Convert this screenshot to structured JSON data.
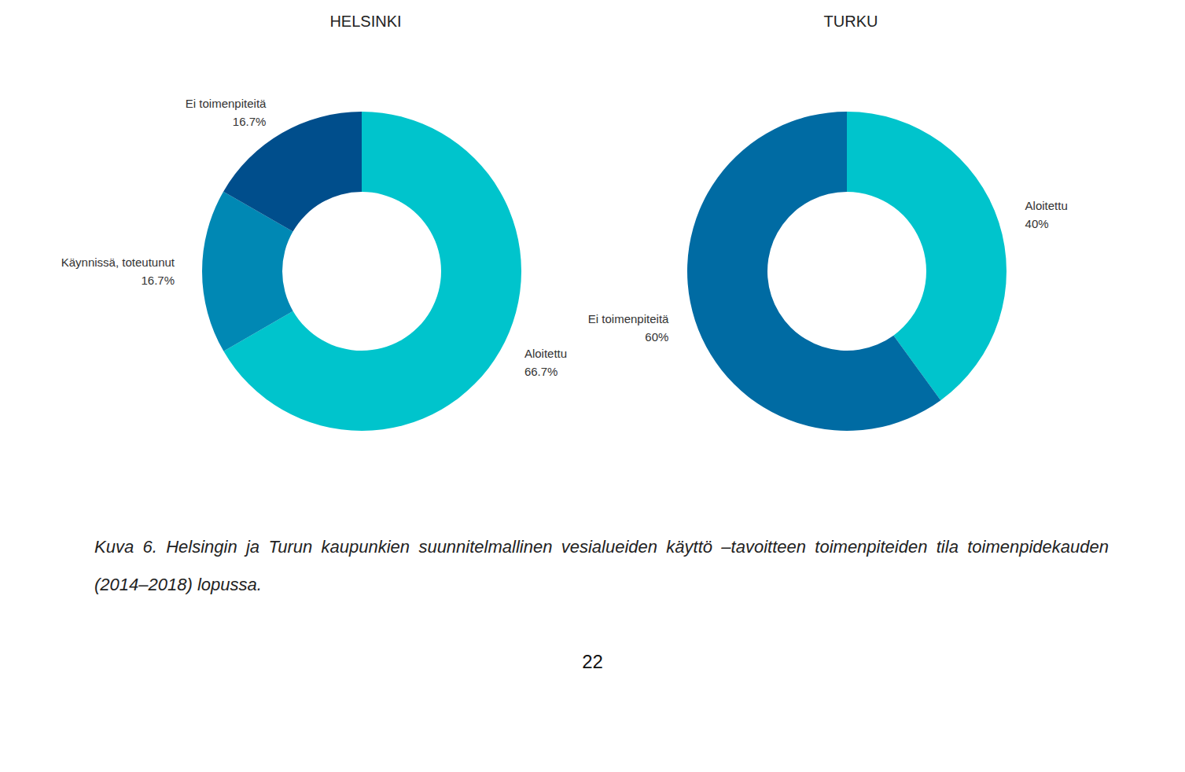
{
  "chart_data": [
    {
      "type": "pie",
      "title": "HELSINKI",
      "categories": [
        "Aloitettu",
        "Käynnissä, toteutunut",
        "Ei toimenpiteitä"
      ],
      "values": [
        66.7,
        16.7,
        16.7
      ],
      "value_labels": [
        "66.7%",
        "16.7%",
        "16.7%"
      ],
      "colors": [
        "#00c4cc",
        "#0088b4",
        "#004e8c"
      ],
      "data_labels": true
    },
    {
      "type": "pie",
      "title": "TURKU",
      "categories": [
        "Aloitettu",
        "Ei toimenpiteitä"
      ],
      "values": [
        40,
        60
      ],
      "value_labels": [
        "40%",
        "60%"
      ],
      "colors": [
        "#00c4cc",
        "#006ba3"
      ],
      "data_labels": true
    }
  ],
  "caption": "Kuva 6. Helsingin ja Turun kaupunkien suunnitelmallinen vesialueiden käyttö –tavoitteen toimenpiteiden tila toimenpidekauden (2014–2018) lopussa.",
  "page_number": "22"
}
